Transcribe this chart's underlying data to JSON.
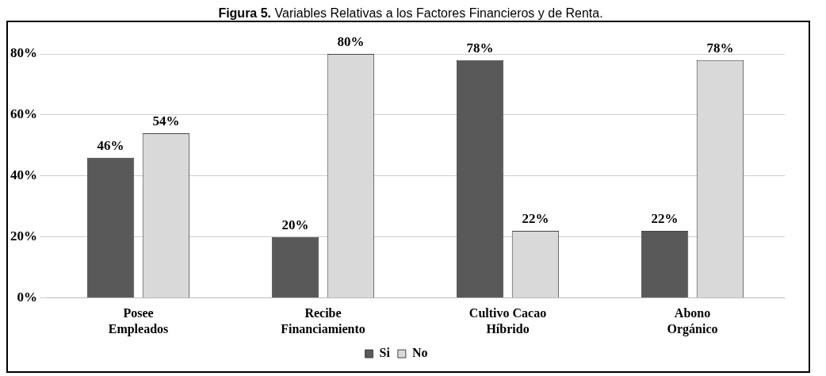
{
  "chart_data": {
    "type": "bar",
    "title": "Figura 5. Variables Relativas a los Factores Financieros y de Renta.",
    "categories": [
      "Posee\nEmpleados",
      "Recibe\nFinanciamiento",
      "Cultivo Cacao\nHíbrido",
      "Abono\nOrgánico"
    ],
    "series": [
      {
        "name": "Si",
        "color": "#595959",
        "values": [
          46,
          20,
          78,
          22
        ],
        "value_labels": [
          "46%",
          "20%",
          "78%",
          "22%"
        ]
      },
      {
        "name": "No",
        "color": "#d9d9d9",
        "values": [
          54,
          80,
          22,
          78
        ],
        "value_labels": [
          "54%",
          "80%",
          "22%",
          "78%"
        ]
      }
    ],
    "ylim": [
      0,
      80
    ],
    "yticks": [
      {
        "value": 0,
        "label": "0%"
      },
      {
        "value": 20,
        "label": "20%"
      },
      {
        "value": 40,
        "label": "40%"
      },
      {
        "value": 60,
        "label": "60%"
      },
      {
        "value": 80,
        "label": "80%"
      }
    ],
    "grid": "y",
    "legend": "bottom"
  }
}
